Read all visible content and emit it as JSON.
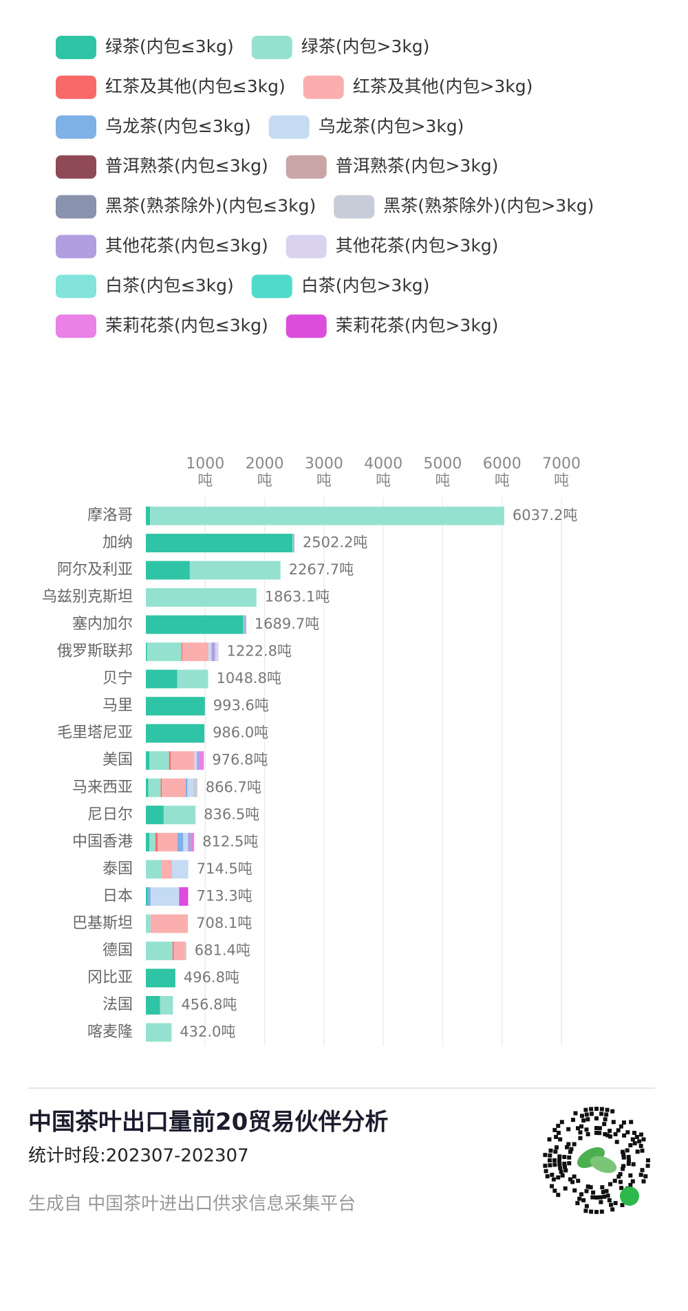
{
  "chart_data": {
    "type": "stacked_barh",
    "title": "中国茶叶出口量前20贸易伙伴分析",
    "subtitle": "统计时段:202307-202307",
    "source": "生成自 中国茶叶进出口供求信息采集平台",
    "x_unit": "吨",
    "xlim": [
      0,
      7000
    ],
    "xticks": [
      1000,
      2000,
      3000,
      4000,
      5000,
      6000,
      7000
    ],
    "grid": true,
    "categories": [
      "摩洛哥",
      "加纳",
      "阿尔及利亚",
      "乌兹别克斯坦",
      "塞内加尔",
      "俄罗斯联邦",
      "贝宁",
      "马里",
      "毛里塔尼亚",
      "美国",
      "马来西亚",
      "尼日尔",
      "中国香港",
      "泰国",
      "日本",
      "巴基斯坦",
      "德国",
      "冈比亚",
      "法国",
      "喀麦隆"
    ],
    "totals": [
      6037.2,
      2502.2,
      2267.7,
      1863.1,
      1689.7,
      1222.8,
      1048.8,
      993.6,
      986.0,
      976.8,
      866.7,
      836.5,
      812.5,
      714.5,
      713.3,
      708.1,
      681.4,
      496.8,
      456.8,
      432.0
    ],
    "total_labels": [
      "6037.2吨",
      "2502.2吨",
      "2267.7吨",
      "1863.1吨",
      "1689.7吨",
      "1222.8吨",
      "1048.8吨",
      "993.6吨",
      "986.0吨",
      "976.8吨",
      "866.7吨",
      "836.5吨",
      "812.5吨",
      "714.5吨",
      "713.3吨",
      "708.1吨",
      "681.4吨",
      "496.8吨",
      "456.8吨",
      "432.0吨"
    ],
    "series": [
      {
        "name": "绿茶(内包≤3kg)",
        "color": "#2ec4a5",
        "values": [
          70,
          2470,
          740,
          0,
          1640,
          20,
          530,
          993.6,
          986.0,
          60,
          40,
          300,
          60,
          0,
          30,
          0,
          0,
          496.8,
          240,
          0
        ]
      },
      {
        "name": "绿茶(内包>3kg)",
        "color": "#95e1cf",
        "values": [
          5967.2,
          12,
          1527.7,
          1863.1,
          20,
          580,
          518.8,
          0,
          0,
          330,
          210,
          536.5,
          100,
          260,
          0,
          80,
          450,
          0,
          216.8,
          432.0
        ]
      },
      {
        "name": "红茶及其他(内包≤3kg)",
        "color": "#f86a6a",
        "values": [
          0,
          0,
          0,
          0,
          0,
          15,
          0,
          0,
          0,
          30,
          20,
          0,
          40,
          0,
          0,
          0,
          20,
          0,
          0,
          0
        ]
      },
      {
        "name": "红茶及其他(内包>3kg)",
        "color": "#fbaeae",
        "values": [
          0,
          0,
          0,
          0,
          0,
          440,
          0,
          0,
          0,
          400,
          400,
          0,
          330,
          180,
          0,
          628.1,
          190,
          0,
          0,
          0
        ]
      },
      {
        "name": "乌龙茶(内包≤3kg)",
        "color": "#7fb0e6",
        "values": [
          0,
          0,
          0,
          0,
          0,
          0,
          0,
          0,
          0,
          0,
          30,
          0,
          100,
          0,
          50,
          0,
          0,
          0,
          0,
          0
        ]
      },
      {
        "name": "乌龙茶(内包>3kg)",
        "color": "#c5dbf3",
        "values": [
          0,
          0,
          0,
          0,
          0,
          50,
          0,
          0,
          0,
          40,
          100,
          0,
          80,
          274.5,
          480,
          0,
          0,
          0,
          0,
          0
        ]
      },
      {
        "name": "普洱熟茶(内包≤3kg)",
        "color": "#8f4a55",
        "values": [
          0,
          0,
          0,
          0,
          0,
          0,
          0,
          0,
          0,
          0,
          0,
          0,
          0,
          0,
          0,
          0,
          0,
          0,
          0,
          0
        ]
      },
      {
        "name": "普洱熟茶(内包>3kg)",
        "color": "#c9a5a5",
        "values": [
          0,
          0,
          0,
          0,
          0,
          0,
          0,
          0,
          0,
          0,
          0,
          0,
          0,
          0,
          0,
          0,
          0,
          0,
          0,
          0
        ]
      },
      {
        "name": "黑茶(熟茶除外)(内包≤3kg)",
        "color": "#8993ad",
        "values": [
          0,
          0,
          0,
          0,
          0,
          0,
          0,
          0,
          0,
          0,
          0,
          0,
          0,
          0,
          0,
          0,
          0,
          0,
          0,
          0
        ]
      },
      {
        "name": "黑茶(熟茶除外)(内包>3kg)",
        "color": "#c8cbd8",
        "values": [
          0,
          0,
          0,
          0,
          0,
          0,
          0,
          0,
          0,
          0,
          66.7,
          0,
          0,
          0,
          0,
          0,
          21.4,
          0,
          0,
          0
        ]
      },
      {
        "name": "其他花茶(内包≤3kg)",
        "color": "#b09ee0",
        "values": [
          0,
          20.2,
          0,
          0,
          29.7,
          60,
          0,
          0,
          0,
          40,
          0,
          0,
          60,
          0,
          0,
          0,
          0,
          0,
          0,
          0
        ]
      },
      {
        "name": "其他花茶(内包>3kg)",
        "color": "#dad3ef",
        "values": [
          0,
          0,
          0,
          0,
          0,
          57.8,
          0,
          0,
          0,
          0,
          0,
          0,
          0,
          0,
          0,
          0,
          0,
          0,
          0,
          0
        ]
      },
      {
        "name": "白茶(内包≤3kg)",
        "color": "#82e4db",
        "values": [
          0,
          0,
          0,
          0,
          0,
          0,
          0,
          0,
          0,
          0,
          0,
          0,
          0,
          0,
          0,
          0,
          0,
          0,
          0,
          0
        ]
      },
      {
        "name": "白茶(内包>3kg)",
        "color": "#4fdbcb",
        "values": [
          0,
          0,
          0,
          0,
          0,
          0,
          0,
          0,
          0,
          0,
          0,
          0,
          0,
          0,
          0,
          0,
          0,
          0,
          0,
          0
        ]
      },
      {
        "name": "茉莉花茶(内包≤3kg)",
        "color": "#e981e6",
        "values": [
          0,
          0,
          0,
          0,
          0,
          0,
          0,
          0,
          0,
          76.8,
          0,
          0,
          42.5,
          0,
          0,
          0,
          0,
          0,
          0,
          0
        ]
      },
      {
        "name": "茉莉花茶(内包>3kg)",
        "color": "#db4ddc",
        "values": [
          0,
          0,
          0,
          0,
          0,
          0,
          0,
          0,
          0,
          0,
          0,
          0,
          0,
          0,
          153.3,
          0,
          0,
          0,
          0,
          0
        ]
      }
    ]
  }
}
